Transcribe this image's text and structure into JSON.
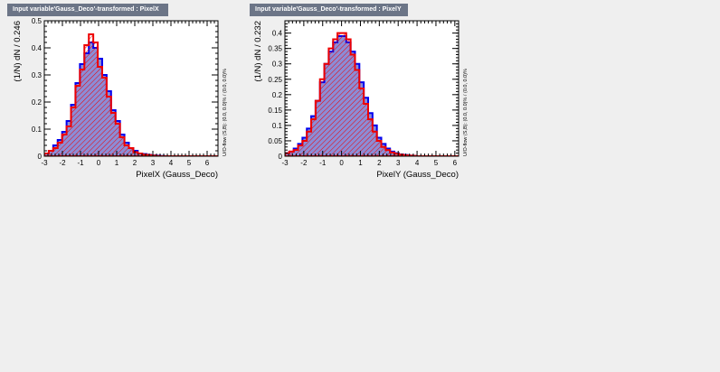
{
  "chart_data": [
    {
      "type": "histogram",
      "panel_title": "Input variable'Gauss_Deco'-transformed : PixelX",
      "xlabel": "PixelX (Gauss_Deco)",
      "ylabel": "(1/N) dN / 0.246",
      "side_text": "U/O-flow (S,B): (0.0, 0.0)% / (0.0, 0.0)%",
      "xlim": [
        -3,
        6.6
      ],
      "ylim": [
        0,
        0.5
      ],
      "xticks": [
        "-3",
        "-2",
        "-1",
        "0",
        "1",
        "2",
        "3",
        "4",
        "5",
        "6"
      ],
      "yticks": [
        "0",
        "0.1",
        "0.2",
        "0.3",
        "0.4",
        "0.5"
      ],
      "bin_start": -3.0,
      "bin_width": 0.246,
      "series": [
        {
          "role": "signal",
          "color": "#0000ee",
          "fill": "#8c8cd6",
          "values": [
            0.01,
            0.02,
            0.04,
            0.06,
            0.09,
            0.13,
            0.19,
            0.27,
            0.34,
            0.38,
            0.42,
            0.4,
            0.36,
            0.3,
            0.24,
            0.17,
            0.13,
            0.08,
            0.05,
            0.03,
            0.02,
            0.01,
            0.008,
            0.005,
            0.003,
            0.002,
            0.001,
            0,
            0,
            0,
            0,
            0,
            0,
            0,
            0,
            0,
            0,
            0,
            0
          ]
        },
        {
          "role": "background",
          "color": "#ee0000",
          "hatch": "#ee0000",
          "values": [
            0.01,
            0.02,
            0.03,
            0.05,
            0.08,
            0.11,
            0.18,
            0.26,
            0.32,
            0.41,
            0.45,
            0.42,
            0.33,
            0.29,
            0.22,
            0.16,
            0.12,
            0.07,
            0.04,
            0.03,
            0.015,
            0.01,
            0.006,
            0.004,
            0.002,
            0.001,
            0,
            0,
            0,
            0,
            0,
            0,
            0,
            0,
            0,
            0,
            0,
            0,
            0
          ]
        }
      ]
    },
    {
      "type": "histogram",
      "panel_title": "Input variable'Gauss_Deco'-transformed : PixelY",
      "xlabel": "PixelY (Gauss_Deco)",
      "ylabel": "(1/N) dN / 0.232",
      "side_text": "U/O-flow (S,B): (0.0, 0.0)% / (0.0, 0.0)%",
      "xlim": [
        -3,
        6.2
      ],
      "ylim": [
        0,
        0.44
      ],
      "xticks": [
        "-3",
        "-2",
        "-1",
        "0",
        "1",
        "2",
        "3",
        "4",
        "5",
        "6"
      ],
      "yticks": [
        "0",
        "0.05",
        "0.1",
        "0.15",
        "0.2",
        "0.25",
        "0.3",
        "0.35",
        "0.4"
      ],
      "bin_start": -3.0,
      "bin_width": 0.232,
      "series": [
        {
          "role": "signal",
          "color": "#0000ee",
          "fill": "#8c8cd6",
          "values": [
            0.01,
            0.015,
            0.025,
            0.04,
            0.06,
            0.09,
            0.13,
            0.18,
            0.24,
            0.3,
            0.34,
            0.37,
            0.39,
            0.39,
            0.37,
            0.34,
            0.3,
            0.24,
            0.19,
            0.14,
            0.1,
            0.06,
            0.04,
            0.025,
            0.015,
            0.01,
            0.006,
            0.004,
            0.002,
            0.001,
            0,
            0,
            0,
            0,
            0,
            0,
            0,
            0,
            0,
            0
          ]
        },
        {
          "role": "background",
          "color": "#ee0000",
          "hatch": "#ee0000",
          "values": [
            0.01,
            0.015,
            0.02,
            0.035,
            0.05,
            0.08,
            0.12,
            0.18,
            0.25,
            0.3,
            0.35,
            0.38,
            0.4,
            0.4,
            0.38,
            0.33,
            0.28,
            0.22,
            0.17,
            0.12,
            0.08,
            0.05,
            0.03,
            0.02,
            0.012,
            0.008,
            0.005,
            0.003,
            0.002,
            0.001,
            0,
            0,
            0,
            0,
            0,
            0,
            0,
            0,
            0,
            0
          ]
        }
      ]
    }
  ]
}
